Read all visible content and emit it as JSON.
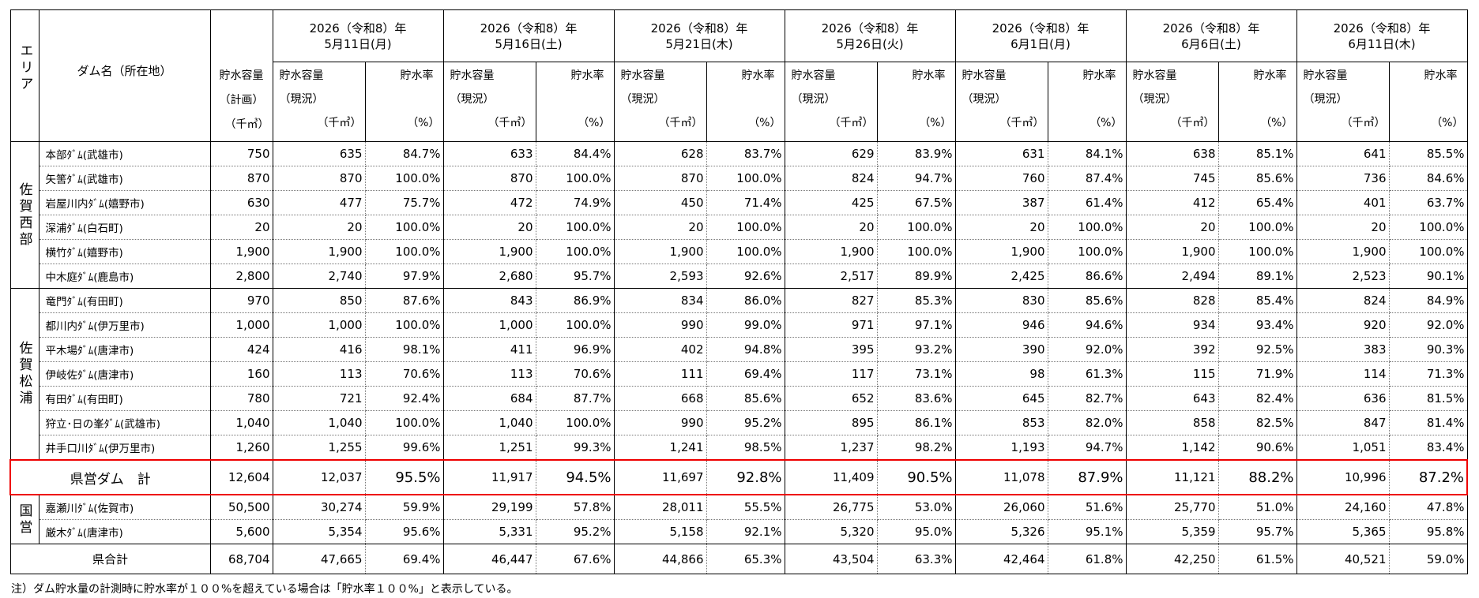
{
  "header": {
    "area": "エリア",
    "dam": "ダム名（所在地）",
    "plan": {
      "label": "貯水容量",
      "sub": "（計画）",
      "unit": "（千㎥）"
    },
    "dates": [
      {
        "year": "2026（令和8）年",
        "date": "5月11日(月)"
      },
      {
        "year": "2026（令和8）年",
        "date": "5月16日(土)"
      },
      {
        "year": "2026（令和8）年",
        "date": "5月21日(木)"
      },
      {
        "year": "2026（令和8）年",
        "date": "5月26日(火)"
      },
      {
        "year": "2026（令和8）年",
        "date": "6月1日(月)"
      },
      {
        "year": "2026（令和8）年",
        "date": "6月6日(土)"
      },
      {
        "year": "2026（令和8）年",
        "date": "6月11日(木)"
      }
    ],
    "current": {
      "label": "貯水容量",
      "sub": "（現況）",
      "unit": "（千㎥）"
    },
    "rate": {
      "label": "貯水率",
      "unit": "（%）"
    }
  },
  "groups": [
    {
      "area": "佐賀西部",
      "rows": [
        {
          "name": "本部ﾀﾞﾑ(武雄市)",
          "plan": "750",
          "values": [
            [
              "635",
              "84.7%"
            ],
            [
              "633",
              "84.4%"
            ],
            [
              "628",
              "83.7%"
            ],
            [
              "629",
              "83.9%"
            ],
            [
              "631",
              "84.1%"
            ],
            [
              "638",
              "85.1%"
            ],
            [
              "641",
              "85.5%"
            ]
          ]
        },
        {
          "name": "矢筈ﾀﾞﾑ(武雄市)",
          "plan": "870",
          "values": [
            [
              "870",
              "100.0%"
            ],
            [
              "870",
              "100.0%"
            ],
            [
              "870",
              "100.0%"
            ],
            [
              "824",
              "94.7%"
            ],
            [
              "760",
              "87.4%"
            ],
            [
              "745",
              "85.6%"
            ],
            [
              "736",
              "84.6%"
            ]
          ]
        },
        {
          "name": "岩屋川内ﾀﾞﾑ(嬉野市)",
          "plan": "630",
          "values": [
            [
              "477",
              "75.7%"
            ],
            [
              "472",
              "74.9%"
            ],
            [
              "450",
              "71.4%"
            ],
            [
              "425",
              "67.5%"
            ],
            [
              "387",
              "61.4%"
            ],
            [
              "412",
              "65.4%"
            ],
            [
              "401",
              "63.7%"
            ]
          ]
        },
        {
          "name": "深浦ﾀﾞﾑ(白石町)",
          "plan": "20",
          "values": [
            [
              "20",
              "100.0%"
            ],
            [
              "20",
              "100.0%"
            ],
            [
              "20",
              "100.0%"
            ],
            [
              "20",
              "100.0%"
            ],
            [
              "20",
              "100.0%"
            ],
            [
              "20",
              "100.0%"
            ],
            [
              "20",
              "100.0%"
            ]
          ]
        },
        {
          "name": "横竹ﾀﾞﾑ(嬉野市)",
          "plan": "1,900",
          "values": [
            [
              "1,900",
              "100.0%"
            ],
            [
              "1,900",
              "100.0%"
            ],
            [
              "1,900",
              "100.0%"
            ],
            [
              "1,900",
              "100.0%"
            ],
            [
              "1,900",
              "100.0%"
            ],
            [
              "1,900",
              "100.0%"
            ],
            [
              "1,900",
              "100.0%"
            ]
          ]
        },
        {
          "name": "中木庭ﾀﾞﾑ(鹿島市)",
          "plan": "2,800",
          "values": [
            [
              "2,740",
              "97.9%"
            ],
            [
              "2,680",
              "95.7%"
            ],
            [
              "2,593",
              "92.6%"
            ],
            [
              "2,517",
              "89.9%"
            ],
            [
              "2,425",
              "86.6%"
            ],
            [
              "2,494",
              "89.1%"
            ],
            [
              "2,523",
              "90.1%"
            ]
          ]
        }
      ]
    },
    {
      "area": "佐賀松浦",
      "rows": [
        {
          "name": "竜門ﾀﾞﾑ(有田町)",
          "plan": "970",
          "values": [
            [
              "850",
              "87.6%"
            ],
            [
              "843",
              "86.9%"
            ],
            [
              "834",
              "86.0%"
            ],
            [
              "827",
              "85.3%"
            ],
            [
              "830",
              "85.6%"
            ],
            [
              "828",
              "85.4%"
            ],
            [
              "824",
              "84.9%"
            ]
          ]
        },
        {
          "name": "都川内ﾀﾞﾑ(伊万里市)",
          "plan": "1,000",
          "values": [
            [
              "1,000",
              "100.0%"
            ],
            [
              "1,000",
              "100.0%"
            ],
            [
              "990",
              "99.0%"
            ],
            [
              "971",
              "97.1%"
            ],
            [
              "946",
              "94.6%"
            ],
            [
              "934",
              "93.4%"
            ],
            [
              "920",
              "92.0%"
            ]
          ]
        },
        {
          "name": "平木場ﾀﾞﾑ(唐津市)",
          "plan": "424",
          "values": [
            [
              "416",
              "98.1%"
            ],
            [
              "411",
              "96.9%"
            ],
            [
              "402",
              "94.8%"
            ],
            [
              "395",
              "93.2%"
            ],
            [
              "390",
              "92.0%"
            ],
            [
              "392",
              "92.5%"
            ],
            [
              "383",
              "90.3%"
            ]
          ]
        },
        {
          "name": "伊岐佐ﾀﾞﾑ(唐津市)",
          "plan": "160",
          "values": [
            [
              "113",
              "70.6%"
            ],
            [
              "113",
              "70.6%"
            ],
            [
              "111",
              "69.4%"
            ],
            [
              "117",
              "73.1%"
            ],
            [
              "98",
              "61.3%"
            ],
            [
              "115",
              "71.9%"
            ],
            [
              "114",
              "71.3%"
            ]
          ]
        },
        {
          "name": "有田ﾀﾞﾑ(有田町)",
          "plan": "780",
          "values": [
            [
              "721",
              "92.4%"
            ],
            [
              "684",
              "87.7%"
            ],
            [
              "668",
              "85.6%"
            ],
            [
              "652",
              "83.6%"
            ],
            [
              "645",
              "82.7%"
            ],
            [
              "643",
              "82.4%"
            ],
            [
              "636",
              "81.5%"
            ]
          ]
        },
        {
          "name": "狩立･日の峯ﾀﾞﾑ(武雄市)",
          "plan": "1,040",
          "values": [
            [
              "1,040",
              "100.0%"
            ],
            [
              "1,040",
              "100.0%"
            ],
            [
              "990",
              "95.2%"
            ],
            [
              "895",
              "86.1%"
            ],
            [
              "853",
              "82.0%"
            ],
            [
              "858",
              "82.5%"
            ],
            [
              "847",
              "81.4%"
            ]
          ]
        },
        {
          "name": "井手口川ﾀﾞﾑ(伊万里市)",
          "plan": "1,260",
          "values": [
            [
              "1,255",
              "99.6%"
            ],
            [
              "1,251",
              "99.3%"
            ],
            [
              "1,241",
              "98.5%"
            ],
            [
              "1,237",
              "98.2%"
            ],
            [
              "1,193",
              "94.7%"
            ],
            [
              "1,142",
              "90.6%"
            ],
            [
              "1,051",
              "83.4%"
            ]
          ]
        }
      ]
    }
  ],
  "prefectural_total": {
    "name": "県営ダム　計",
    "plan": "12,604",
    "values": [
      [
        "12,037",
        "95.5%"
      ],
      [
        "11,917",
        "94.5%"
      ],
      [
        "11,697",
        "92.8%"
      ],
      [
        "11,409",
        "90.5%"
      ],
      [
        "11,078",
        "87.9%"
      ],
      [
        "11,121",
        "88.2%"
      ],
      [
        "10,996",
        "87.2%"
      ]
    ]
  },
  "national": {
    "area": "国営",
    "rows": [
      {
        "name": "嘉瀬川ﾀﾞﾑ(佐賀市)",
        "plan": "50,500",
        "values": [
          [
            "30,274",
            "59.9%"
          ],
          [
            "29,199",
            "57.8%"
          ],
          [
            "28,011",
            "55.5%"
          ],
          [
            "26,775",
            "53.0%"
          ],
          [
            "26,060",
            "51.6%"
          ],
          [
            "25,770",
            "51.0%"
          ],
          [
            "24,160",
            "47.8%"
          ]
        ]
      },
      {
        "name": "厳木ﾀﾞﾑ(唐津市)",
        "plan": "5,600",
        "values": [
          [
            "5,354",
            "95.6%"
          ],
          [
            "5,331",
            "95.2%"
          ],
          [
            "5,158",
            "92.1%"
          ],
          [
            "5,320",
            "95.0%"
          ],
          [
            "5,326",
            "95.1%"
          ],
          [
            "5,359",
            "95.7%"
          ],
          [
            "5,365",
            "95.8%"
          ]
        ]
      }
    ]
  },
  "grand_total": {
    "name": "県合計",
    "plan": "68,704",
    "values": [
      [
        "47,665",
        "69.4%"
      ],
      [
        "46,447",
        "67.6%"
      ],
      [
        "44,866",
        "65.3%"
      ],
      [
        "43,504",
        "63.3%"
      ],
      [
        "42,464",
        "61.8%"
      ],
      [
        "42,250",
        "61.5%"
      ],
      [
        "40,521",
        "59.0%"
      ]
    ]
  },
  "note": "注）ダム貯水量の計測時に貯水率が１００%を超えている場合は「貯水率１００%」と表示している。"
}
